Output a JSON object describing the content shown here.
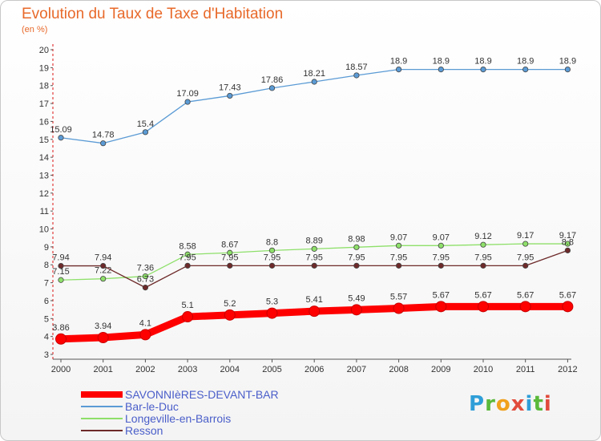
{
  "title": "Evolution du Taux de Taxe d'Habitation",
  "subtitle": "(en %)",
  "logo": {
    "text": "Proxiti"
  },
  "chart_data": {
    "type": "line",
    "title": "Evolution du Taux de Taxe d'Habitation",
    "ylabel": "(en %)",
    "xlabel": "",
    "ylim": [
      3,
      20
    ],
    "grid": false,
    "legend": "bottom-left",
    "x": [
      "2000",
      "2001",
      "2002",
      "2003",
      "2004",
      "2005",
      "2006",
      "2007",
      "2008",
      "2009",
      "2010",
      "2011",
      "2012"
    ],
    "y_ticks": [
      "3",
      "4",
      "5",
      "6",
      "7",
      "8",
      "9",
      "10",
      "11",
      "12",
      "13",
      "14",
      "15",
      "16",
      "17",
      "18",
      "19",
      "20"
    ],
    "series": [
      {
        "name": "SAVONNIèRES-DEVANT-BAR",
        "color": "#ff0000",
        "width": "thick",
        "values": [
          3.86,
          3.94,
          4.1,
          5.1,
          5.2,
          5.3,
          5.41,
          5.49,
          5.57,
          5.67,
          5.67,
          5.67,
          5.67
        ],
        "labels": [
          "3.86",
          "3.94",
          "4.1",
          "5.1",
          "5.2",
          "5.3",
          "5.41",
          "5.49",
          "5.57",
          "5.67",
          "5.67",
          "5.67",
          "5.67"
        ]
      },
      {
        "name": "Bar-le-Duc",
        "color": "#5b9bd5",
        "width": "thin",
        "values": [
          15.09,
          14.78,
          15.4,
          17.09,
          17.43,
          17.86,
          18.21,
          18.57,
          18.9,
          18.9,
          18.9,
          18.9,
          18.9
        ],
        "labels": [
          "15.09",
          "14.78",
          "15.4",
          "17.09",
          "17.43",
          "17.86",
          "18.21",
          "18.57",
          "18.9",
          "18.9",
          "18.9",
          "18.9",
          "18.9"
        ]
      },
      {
        "name": "Longeville-en-Barrois",
        "color": "#8ee06a",
        "width": "thin",
        "values": [
          7.15,
          7.22,
          7.36,
          8.58,
          8.67,
          8.8,
          8.89,
          8.98,
          9.07,
          9.07,
          9.12,
          9.17,
          9.17
        ],
        "labels": [
          "7.15",
          "7.22",
          "7.36",
          "8.58",
          "8.67",
          "8.8",
          "8.89",
          "8.98",
          "9.07",
          "9.07",
          "9.12",
          "9.17",
          "9.17"
        ]
      },
      {
        "name": "Resson",
        "color": "#6e2a2a",
        "width": "thin",
        "values": [
          7.94,
          7.94,
          6.73,
          7.95,
          7.95,
          7.95,
          7.95,
          7.95,
          7.95,
          7.95,
          7.95,
          7.95,
          8.8
        ],
        "labels": [
          "7.94",
          "7.94",
          "6.73",
          "7.95",
          "7.95",
          "7.95",
          "7.95",
          "7.95",
          "7.95",
          "7.95",
          "7.95",
          "7.95",
          "8.8"
        ]
      }
    ]
  }
}
